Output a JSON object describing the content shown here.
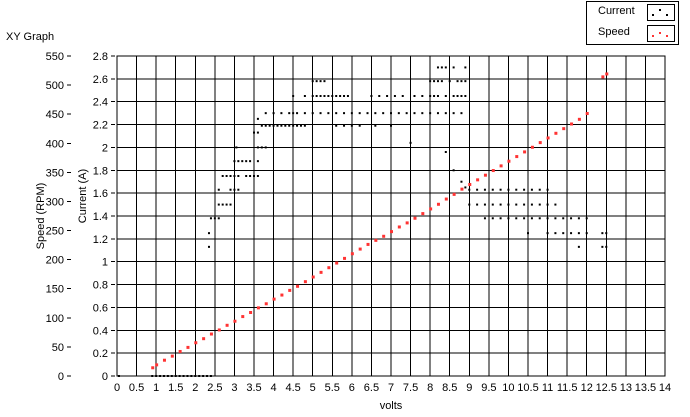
{
  "graph_title": "XY Graph",
  "chart_data": {
    "type": "scatter",
    "xlabel": "volts",
    "ylabel_left": "Speed (RPM)",
    "ylabel_inner": "Current (A)",
    "xlim": [
      0,
      14
    ],
    "ylim_current": [
      0,
      2.8
    ],
    "ylim_speed": [
      0,
      550
    ],
    "grid": true,
    "legend_position": "top-right",
    "x_ticks": [
      "0",
      "0.5",
      "1",
      "1.5",
      "2",
      "2.5",
      "3",
      "3.5",
      "4",
      "4.5",
      "5",
      "5.5",
      "6",
      "6.5",
      "7",
      "7.5",
      "8",
      "8.5",
      "9",
      "9.5",
      "10",
      "10.5",
      "11",
      "11.5",
      "12",
      "12.5",
      "13",
      "13.5",
      "14"
    ],
    "current_ticks": [
      "0",
      "0.2",
      "0.4",
      "0.6",
      "0.8",
      "1",
      "1.2",
      "1.4",
      "1.6",
      "1.8",
      "2",
      "2.2",
      "2.4",
      "2.6",
      "2.8"
    ],
    "speed_ticks": [
      "0",
      "50",
      "100",
      "150",
      "200",
      "250",
      "300",
      "350",
      "400",
      "450",
      "500",
      "550"
    ],
    "series": [
      {
        "name": "Current",
        "color": "#000000",
        "points": [
          [
            0.05,
            0
          ],
          [
            0.9,
            0
          ],
          [
            1.0,
            0
          ],
          [
            1.1,
            0
          ],
          [
            1.2,
            0
          ],
          [
            1.3,
            0
          ],
          [
            1.4,
            0
          ],
          [
            1.5,
            0
          ],
          [
            1.6,
            0
          ],
          [
            1.7,
            0
          ],
          [
            1.8,
            0
          ],
          [
            1.9,
            0
          ],
          [
            2.0,
            0
          ],
          [
            2.1,
            0
          ],
          [
            2.2,
            0
          ],
          [
            2.3,
            0
          ],
          [
            2.4,
            0
          ],
          [
            2.35,
            1.13
          ],
          [
            2.35,
            1.25
          ],
          [
            2.4,
            1.38
          ],
          [
            2.5,
            1.38
          ],
          [
            2.6,
            1.38
          ],
          [
            2.6,
            1.5
          ],
          [
            2.7,
            1.5
          ],
          [
            2.8,
            1.5
          ],
          [
            2.9,
            1.5
          ],
          [
            2.9,
            1.63
          ],
          [
            3.0,
            1.63
          ],
          [
            3.1,
            1.63
          ],
          [
            2.6,
            1.63
          ],
          [
            2.7,
            1.75
          ],
          [
            2.8,
            1.75
          ],
          [
            2.9,
            1.75
          ],
          [
            3.0,
            1.75
          ],
          [
            3.1,
            1.75
          ],
          [
            3.0,
            1.88
          ],
          [
            3.1,
            1.88
          ],
          [
            3.2,
            1.88
          ],
          [
            3.3,
            1.88
          ],
          [
            3.4,
            1.88
          ],
          [
            3.05,
            2.0
          ],
          [
            3.3,
            1.75
          ],
          [
            3.4,
            1.75
          ],
          [
            3.5,
            1.75
          ],
          [
            3.6,
            1.75
          ],
          [
            3.6,
            1.88
          ],
          [
            3.6,
            2.0
          ],
          [
            3.7,
            2.0
          ],
          [
            3.8,
            2.0
          ],
          [
            3.5,
            2.13
          ],
          [
            3.6,
            2.13
          ],
          [
            3.6,
            2.25
          ],
          [
            3.7,
            2.19
          ],
          [
            3.8,
            2.19
          ],
          [
            3.9,
            2.19
          ],
          [
            4.0,
            2.19
          ],
          [
            4.1,
            2.19
          ],
          [
            4.2,
            2.19
          ],
          [
            4.3,
            2.19
          ],
          [
            4.4,
            2.19
          ],
          [
            4.5,
            2.19
          ],
          [
            4.6,
            2.19
          ],
          [
            4.7,
            2.19
          ],
          [
            4.8,
            2.19
          ],
          [
            3.8,
            2.3
          ],
          [
            4.0,
            2.3
          ],
          [
            4.2,
            2.3
          ],
          [
            4.4,
            2.3
          ],
          [
            4.5,
            2.3
          ],
          [
            4.6,
            2.3
          ],
          [
            4.8,
            2.3
          ],
          [
            5.0,
            2.3
          ],
          [
            5.2,
            2.3
          ],
          [
            4.5,
            2.45
          ],
          [
            4.8,
            2.45
          ],
          [
            5.0,
            2.45
          ],
          [
            5.1,
            2.45
          ],
          [
            5.2,
            2.45
          ],
          [
            5.3,
            2.45
          ],
          [
            5.4,
            2.45
          ],
          [
            5.5,
            2.45
          ],
          [
            5.6,
            2.45
          ],
          [
            5.7,
            2.45
          ],
          [
            5.8,
            2.45
          ],
          [
            5.9,
            2.45
          ],
          [
            5.0,
            2.58
          ],
          [
            5.1,
            2.58
          ],
          [
            5.2,
            2.58
          ],
          [
            5.3,
            2.58
          ],
          [
            5.4,
            2.3
          ],
          [
            5.6,
            2.3
          ],
          [
            5.8,
            2.3
          ],
          [
            6.0,
            2.3
          ],
          [
            6.2,
            2.3
          ],
          [
            6.4,
            2.3
          ],
          [
            6.6,
            2.3
          ],
          [
            6.8,
            2.3
          ],
          [
            7.0,
            2.3
          ],
          [
            7.2,
            2.3
          ],
          [
            7.4,
            2.3
          ],
          [
            7.6,
            2.3
          ],
          [
            7.8,
            2.3
          ],
          [
            8.0,
            2.3
          ],
          [
            8.2,
            2.3
          ],
          [
            8.4,
            2.3
          ],
          [
            8.6,
            2.3
          ],
          [
            8.8,
            2.3
          ],
          [
            5.6,
            2.19
          ],
          [
            5.8,
            2.19
          ],
          [
            6.0,
            2.19
          ],
          [
            6.2,
            2.19
          ],
          [
            6.6,
            2.19
          ],
          [
            7.0,
            2.19
          ],
          [
            6.5,
            2.45
          ],
          [
            6.7,
            2.45
          ],
          [
            6.9,
            2.45
          ],
          [
            7.1,
            2.45
          ],
          [
            7.3,
            2.45
          ],
          [
            7.6,
            2.45
          ],
          [
            7.8,
            2.45
          ],
          [
            8.0,
            2.45
          ],
          [
            8.1,
            2.45
          ],
          [
            8.2,
            2.45
          ],
          [
            8.4,
            2.45
          ],
          [
            8.6,
            2.45
          ],
          [
            8.7,
            2.45
          ],
          [
            8.8,
            2.45
          ],
          [
            8.9,
            2.45
          ],
          [
            7.5,
            2.04
          ],
          [
            8.0,
            2.58
          ],
          [
            8.1,
            2.58
          ],
          [
            8.2,
            2.58
          ],
          [
            8.3,
            2.58
          ],
          [
            8.5,
            2.58
          ],
          [
            8.7,
            2.58
          ],
          [
            8.8,
            2.58
          ],
          [
            8.9,
            2.58
          ],
          [
            8.2,
            2.7
          ],
          [
            8.3,
            2.7
          ],
          [
            8.4,
            2.7
          ],
          [
            8.6,
            2.7
          ],
          [
            8.9,
            2.7
          ],
          [
            8.4,
            1.96
          ],
          [
            8.6,
            1.8
          ],
          [
            8.8,
            1.7
          ],
          [
            8.9,
            1.65
          ],
          [
            9.0,
            1.63
          ],
          [
            9.2,
            1.63
          ],
          [
            9.4,
            1.63
          ],
          [
            9.6,
            1.63
          ],
          [
            9.8,
            1.63
          ],
          [
            10.0,
            1.63
          ],
          [
            10.2,
            1.63
          ],
          [
            10.4,
            1.63
          ],
          [
            10.6,
            1.63
          ],
          [
            10.8,
            1.63
          ],
          [
            11.0,
            1.63
          ],
          [
            9.0,
            1.5
          ],
          [
            9.2,
            1.5
          ],
          [
            9.4,
            1.5
          ],
          [
            9.6,
            1.5
          ],
          [
            9.8,
            1.5
          ],
          [
            10.0,
            1.5
          ],
          [
            10.2,
            1.5
          ],
          [
            10.4,
            1.5
          ],
          [
            10.6,
            1.5
          ],
          [
            10.8,
            1.5
          ],
          [
            11.0,
            1.5
          ],
          [
            11.2,
            1.5
          ],
          [
            9.4,
            1.38
          ],
          [
            9.6,
            1.38
          ],
          [
            9.8,
            1.38
          ],
          [
            10.0,
            1.38
          ],
          [
            10.2,
            1.38
          ],
          [
            10.4,
            1.38
          ],
          [
            10.6,
            1.38
          ],
          [
            10.8,
            1.38
          ],
          [
            11.0,
            1.38
          ],
          [
            11.2,
            1.38
          ],
          [
            11.4,
            1.38
          ],
          [
            11.6,
            1.38
          ],
          [
            11.8,
            1.38
          ],
          [
            12.0,
            1.38
          ],
          [
            10.5,
            1.25
          ],
          [
            11.0,
            1.25
          ],
          [
            11.2,
            1.25
          ],
          [
            11.4,
            1.25
          ],
          [
            11.6,
            1.25
          ],
          [
            11.8,
            1.25
          ],
          [
            12.0,
            1.25
          ],
          [
            11.8,
            1.13
          ],
          [
            12.4,
            1.13
          ],
          [
            12.5,
            1.13
          ],
          [
            12.4,
            1.25
          ],
          [
            12.5,
            1.25
          ]
        ]
      },
      {
        "name": "Speed",
        "color": "#ff3333",
        "points": [
          [
            0.9,
            15
          ],
          [
            1.0,
            20
          ],
          [
            1.2,
            28
          ],
          [
            1.4,
            35
          ],
          [
            1.6,
            43
          ],
          [
            1.8,
            50
          ],
          [
            2.0,
            58
          ],
          [
            2.2,
            65
          ],
          [
            2.4,
            73
          ],
          [
            2.6,
            80
          ],
          [
            2.8,
            88
          ],
          [
            3.0,
            95
          ],
          [
            3.2,
            103
          ],
          [
            3.4,
            110
          ],
          [
            3.6,
            118
          ],
          [
            3.8,
            125
          ],
          [
            4.0,
            133
          ],
          [
            4.2,
            140
          ],
          [
            4.4,
            148
          ],
          [
            4.6,
            155
          ],
          [
            4.8,
            163
          ],
          [
            5.0,
            171
          ],
          [
            5.2,
            179
          ],
          [
            5.4,
            187
          ],
          [
            5.6,
            195
          ],
          [
            5.8,
            203
          ],
          [
            6.0,
            211
          ],
          [
            6.2,
            219
          ],
          [
            6.4,
            227
          ],
          [
            6.6,
            234
          ],
          [
            6.8,
            241
          ],
          [
            7.0,
            249
          ],
          [
            7.2,
            257
          ],
          [
            7.4,
            264
          ],
          [
            7.6,
            272
          ],
          [
            7.8,
            280
          ],
          [
            8.0,
            288
          ],
          [
            8.2,
            296
          ],
          [
            8.4,
            305
          ],
          [
            8.6,
            313
          ],
          [
            8.8,
            322
          ],
          [
            9.0,
            330
          ],
          [
            9.2,
            338
          ],
          [
            9.4,
            346
          ],
          [
            9.6,
            354
          ],
          [
            9.8,
            362
          ],
          [
            10.0,
            370
          ],
          [
            10.2,
            378
          ],
          [
            10.4,
            386
          ],
          [
            10.6,
            394
          ],
          [
            10.8,
            402
          ],
          [
            11.0,
            410
          ],
          [
            11.2,
            418
          ],
          [
            11.4,
            426
          ],
          [
            11.6,
            434
          ],
          [
            11.8,
            442
          ],
          [
            12.0,
            452
          ],
          [
            12.4,
            515
          ],
          [
            12.5,
            520
          ]
        ]
      }
    ]
  }
}
